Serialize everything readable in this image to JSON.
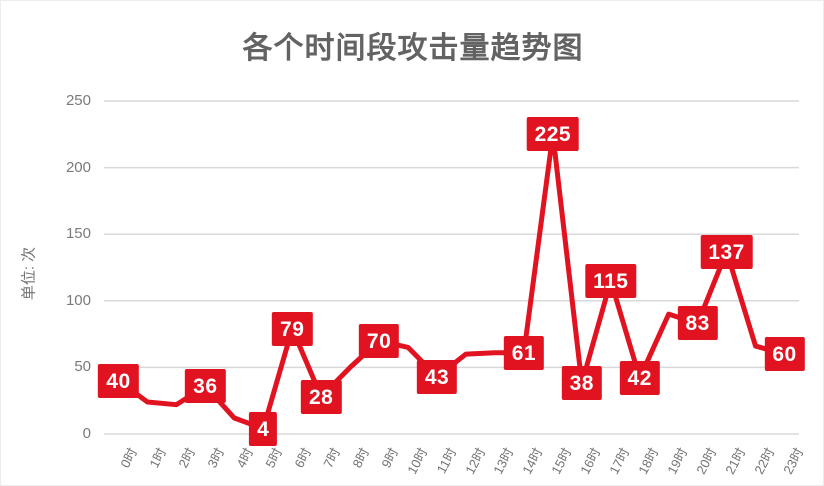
{
  "title": "各个时间段攻击量趋势图",
  "y_axis": {
    "unit_label": "单位: 次",
    "ticks": [
      0,
      50,
      100,
      150,
      200,
      250
    ]
  },
  "colors": {
    "line": "#e21320",
    "label_bg": "#e21320",
    "label_text": "#ffffff",
    "grid": "#d9d9d9",
    "axis_text": "#737373",
    "title_text": "#636363"
  },
  "chart_data": {
    "type": "line",
    "title": "各个时间段攻击量趋势图",
    "xlabel": "",
    "ylabel": "单位: 次",
    "ylim": [
      0,
      250
    ],
    "grid": true,
    "legend": false,
    "categories": [
      "0时",
      "1时",
      "2时",
      "3时",
      "4时",
      "5时",
      "6时",
      "7时",
      "8时",
      "9时",
      "10时",
      "11时",
      "12时",
      "13时",
      "14时",
      "15时",
      "16时",
      "17时",
      "18时",
      "19时",
      "20时",
      "21时",
      "22时",
      "23时"
    ],
    "values": [
      40,
      24,
      22,
      36,
      12,
      4,
      79,
      28,
      50,
      70,
      65,
      43,
      60,
      61,
      61,
      225,
      38,
      115,
      42,
      90,
      83,
      137,
      66,
      60
    ],
    "data_labels": [
      40,
      null,
      null,
      36,
      null,
      4,
      79,
      28,
      null,
      70,
      null,
      43,
      null,
      null,
      61,
      225,
      38,
      115,
      42,
      null,
      83,
      137,
      null,
      60
    ]
  }
}
